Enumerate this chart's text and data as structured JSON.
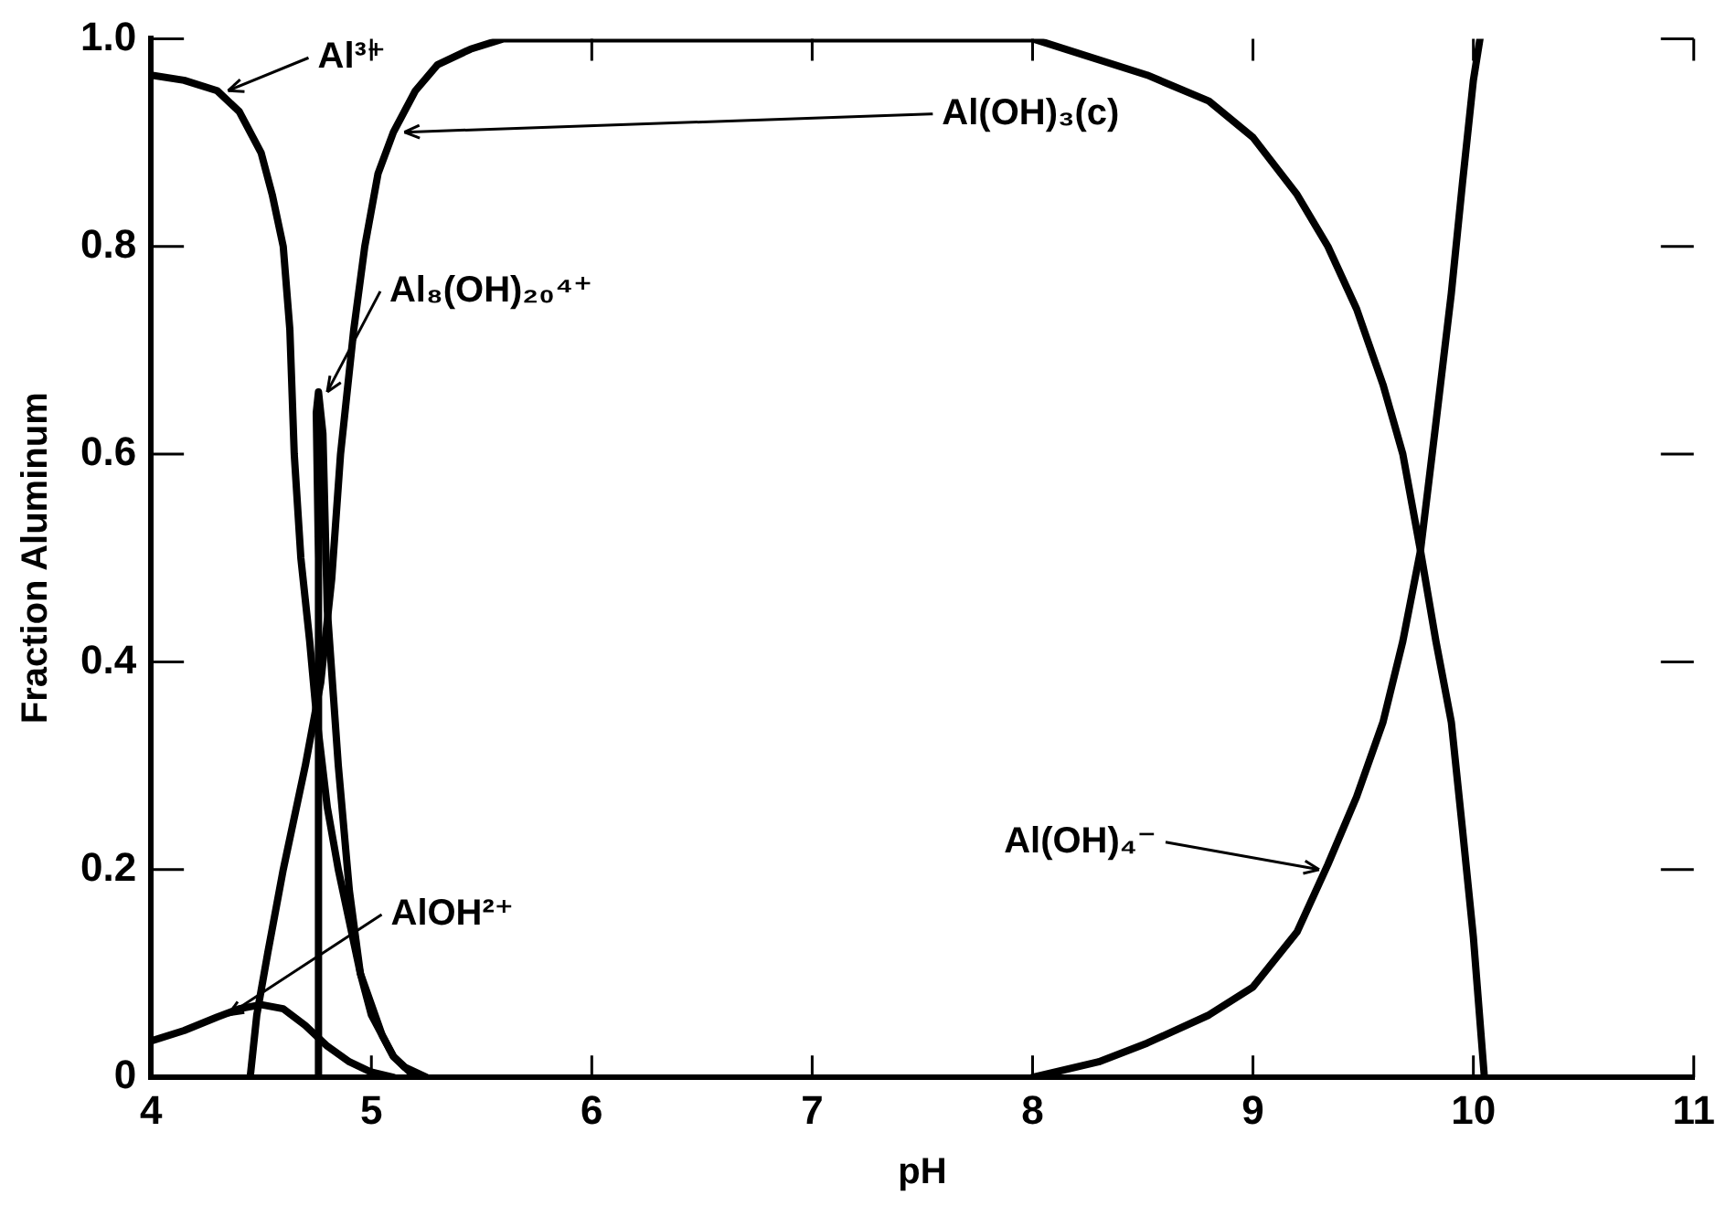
{
  "chart_data": {
    "type": "line",
    "xlabel": "pH",
    "ylabel": "Fraction Aluminum",
    "xlim": [
      4,
      11
    ],
    "xticks": [
      4,
      5,
      6,
      7,
      8,
      9,
      10,
      11
    ],
    "ylim": [
      0,
      1
    ],
    "yticks": [
      0,
      0.2,
      0.4,
      0.6,
      0.8,
      {
        "value": 1,
        "label": "1.0"
      }
    ],
    "grid": false,
    "legend": false,
    "marker": "none",
    "line_style": "solid",
    "series": [
      {
        "color": "#000000",
        "x": [
          4,
          4.15,
          4.3,
          4.4,
          4.5,
          4.55,
          4.6,
          4.63,
          4.65,
          4.68,
          4.72,
          4.75,
          4.8,
          4.85,
          4.9,
          4.95,
          5.0,
          5.05,
          5.1,
          5.15,
          5.25
        ],
        "values": [
          0.965,
          0.96,
          0.95,
          0.93,
          0.89,
          0.85,
          0.8,
          0.72,
          0.6,
          0.5,
          0.42,
          0.35,
          0.26,
          0.2,
          0.15,
          0.1,
          0.07,
          0.04,
          0.02,
          0.01,
          0
        ]
      },
      {
        "color": "#000000",
        "x": [
          4.45,
          4.48,
          4.53,
          4.6,
          4.7,
          4.77,
          4.82,
          4.86,
          4.92,
          4.97,
          5.03,
          5.1,
          5.2,
          5.3,
          5.45,
          5.6,
          6,
          7,
          8,
          8.52,
          8.8,
          9.0,
          9.2,
          9.34,
          9.47,
          9.59,
          9.68,
          9.76,
          9.83,
          9.9,
          9.95,
          10.0,
          10.05
        ],
        "values": [
          0,
          0.06,
          0.12,
          0.2,
          0.3,
          0.38,
          0.48,
          0.6,
          0.72,
          0.8,
          0.87,
          0.91,
          0.95,
          0.975,
          0.99,
          1,
          1,
          1,
          1,
          0.965,
          0.94,
          0.905,
          0.85,
          0.8,
          0.74,
          0.667,
          0.6,
          0.507,
          0.42,
          0.342,
          0.24,
          0.135,
          0
        ]
      },
      {
        "color": "#000000",
        "x": [
          4.76,
          4.76,
          4.75,
          4.76,
          4.78,
          4.8,
          4.85,
          4.9,
          4.95,
          5.0,
          5.1,
          5.2
        ],
        "values": [
          0,
          0.5,
          0.64,
          0.66,
          0.62,
          0.45,
          0.3,
          0.18,
          0.1,
          0.06,
          0.02,
          0
        ]
      },
      {
        "color": "#000000",
        "x": [
          4,
          4.15,
          4.3,
          4.4,
          4.5,
          4.6,
          4.7,
          4.8,
          4.9,
          5.0,
          5.1
        ],
        "values": [
          0.035,
          0.045,
          0.058,
          0.066,
          0.07,
          0.066,
          0.05,
          0.03,
          0.015,
          0.005,
          0
        ]
      },
      {
        "color": "#000000",
        "x": [
          8,
          8.3,
          8.52,
          8.8,
          9.0,
          9.2,
          9.34,
          9.47,
          9.59,
          9.68,
          9.76,
          9.83,
          9.9,
          9.95,
          10.0,
          10.03
        ],
        "values": [
          0,
          0.015,
          0.033,
          0.06,
          0.087,
          0.14,
          0.205,
          0.27,
          0.342,
          0.42,
          0.507,
          0.63,
          0.755,
          0.86,
          0.96,
          1
        ]
      }
    ],
    "annotations": [
      {
        "text": "Al³⁺",
        "x": 4.3,
        "y": 0.95
      },
      {
        "text": "Al(OH)₃(c)",
        "x": 5.1,
        "y": 0.91
      },
      {
        "text": "Al₈(OH)₂₀⁴⁺",
        "x": 4.75,
        "y": 0.66
      },
      {
        "text": "AlOH²⁺",
        "x": 4.3,
        "y": 0.06
      },
      {
        "text": "Al(OH)₄⁻",
        "x": 9.35,
        "y": 0.2
      }
    ]
  }
}
